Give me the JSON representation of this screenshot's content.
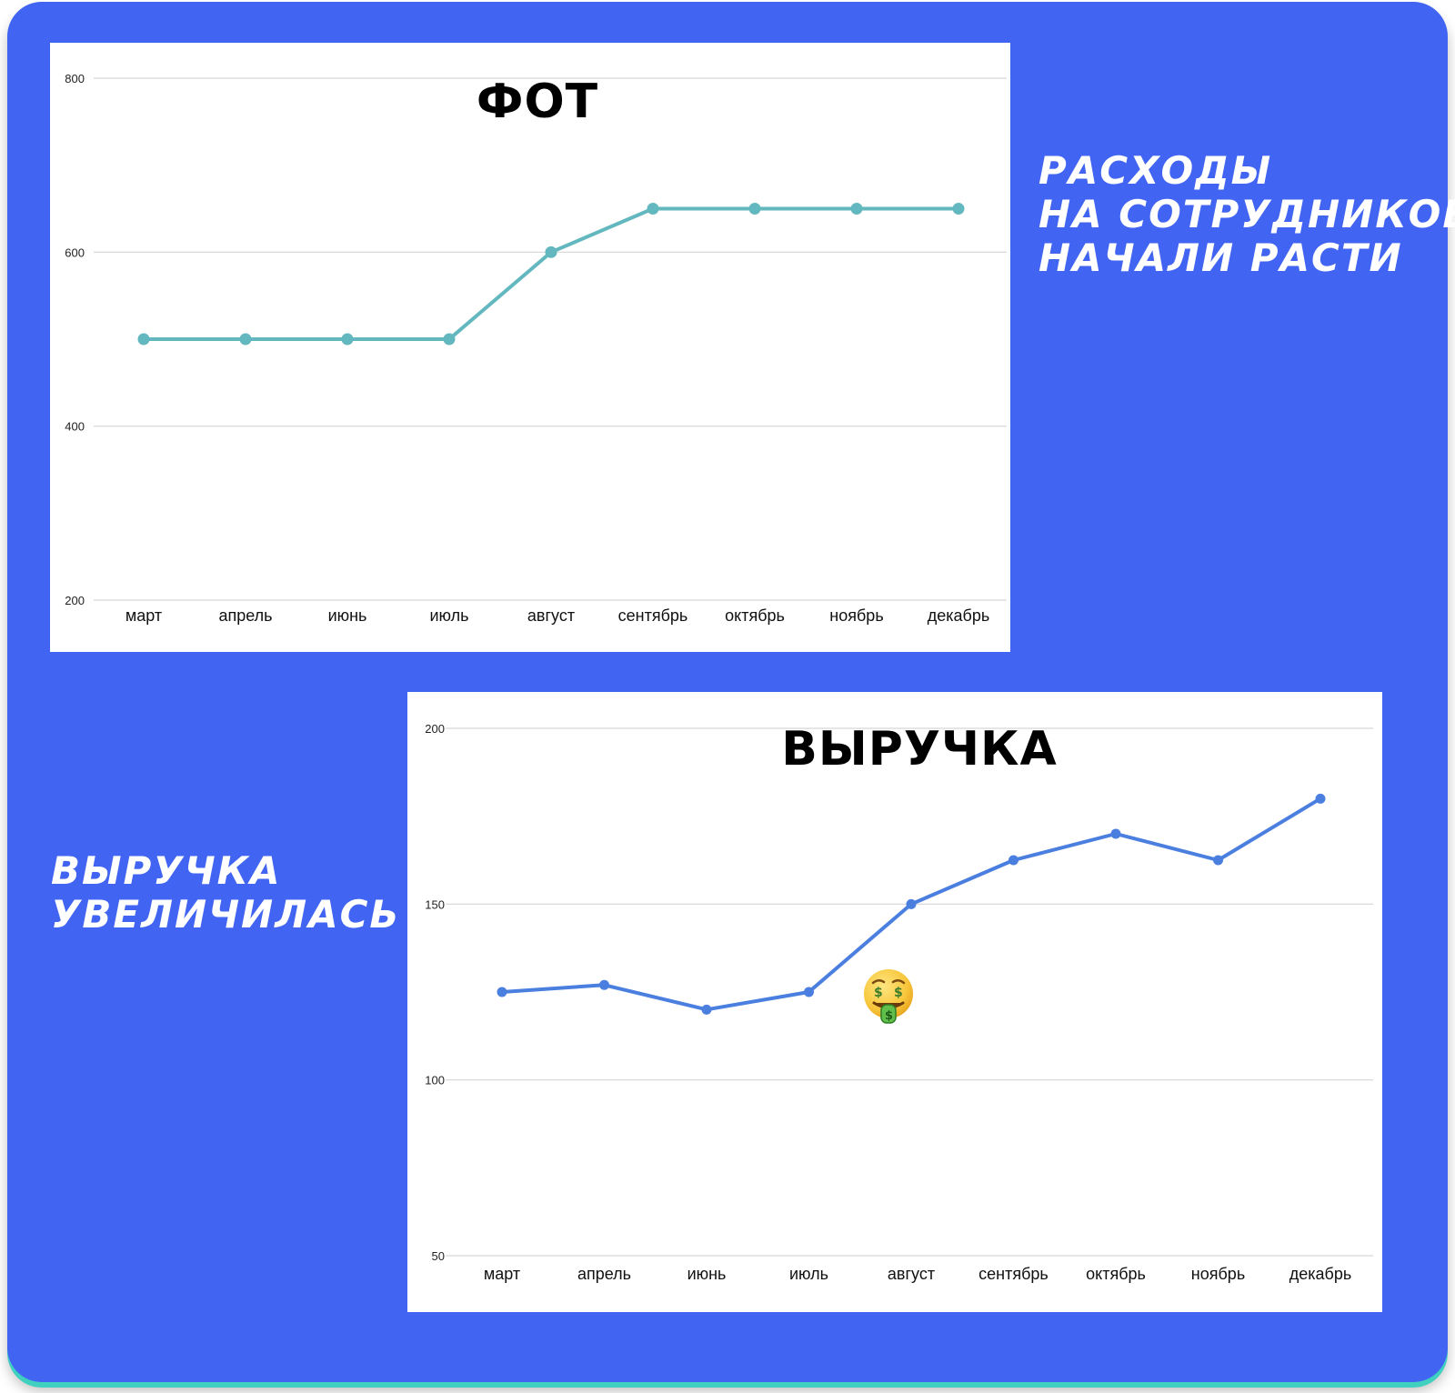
{
  "captions": {
    "top_right": [
      "Расходы",
      "на сотрудников",
      "начали расти"
    ],
    "bottom_left": [
      "Выручка",
      "увеличилась"
    ]
  },
  "chart_data": [
    {
      "type": "line",
      "title": "ФОТ",
      "xlabel": "",
      "ylabel": "",
      "categories": [
        "март",
        "апрель",
        "июнь",
        "июль",
        "август",
        "сентябрь",
        "октябрь",
        "ноябрь",
        "декабрь"
      ],
      "series": [
        {
          "values": [
            500,
            500,
            500,
            500,
            600,
            650,
            650,
            650,
            650
          ],
          "color": "#63b8bf"
        }
      ],
      "ylim": [
        200,
        800
      ],
      "yticks": [
        200,
        400,
        600,
        800
      ],
      "grid": true,
      "legend": "none"
    },
    {
      "type": "line",
      "title": "ВЫРУЧКА",
      "xlabel": "",
      "ylabel": "",
      "categories": [
        "март",
        "апрель",
        "июнь",
        "июль",
        "август",
        "сентябрь",
        "октябрь",
        "ноябрь",
        "декабрь"
      ],
      "series": [
        {
          "values": [
            125,
            127,
            120,
            125,
            150,
            162.5,
            170,
            162.5,
            180
          ],
          "color": "#4a7fe0"
        }
      ],
      "ylim": [
        50,
        200
      ],
      "yticks": [
        50,
        100,
        150,
        200
      ],
      "grid": true,
      "legend": "none"
    }
  ],
  "decorations": {
    "emoji_icon": "money-mouth-face-icon"
  }
}
